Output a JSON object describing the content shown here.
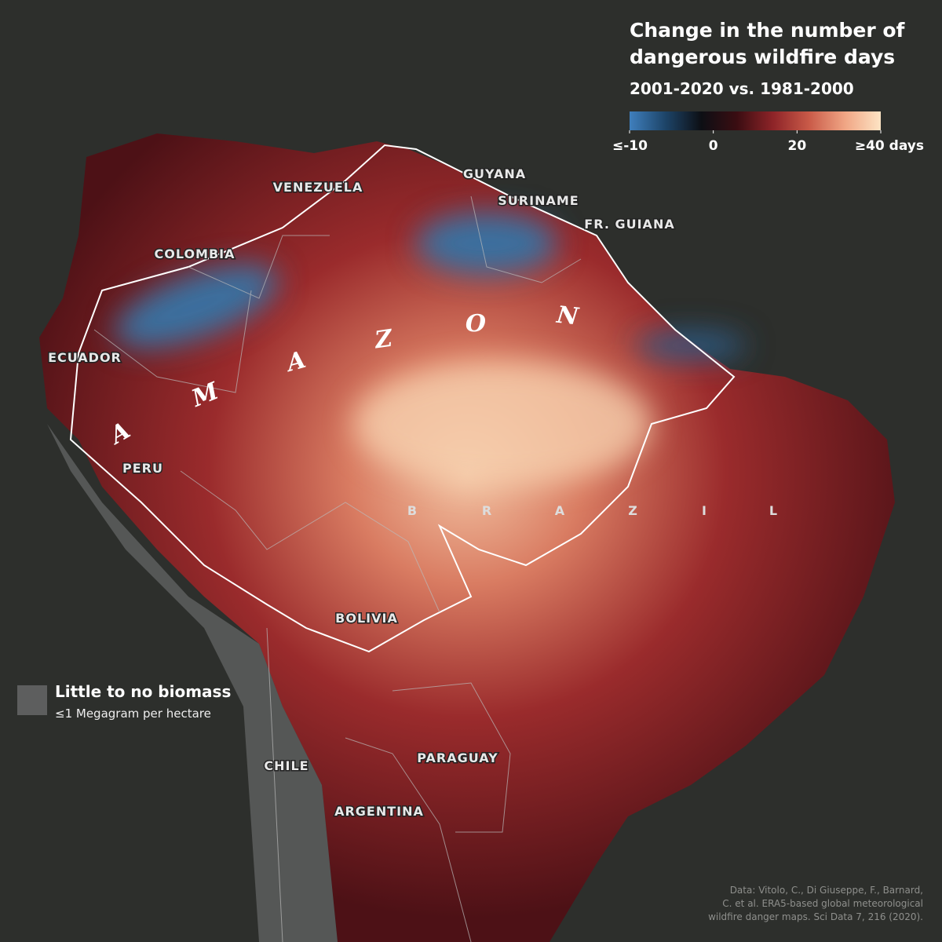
{
  "header": {
    "title": [
      "Change in the number of",
      "dangerous wildfire days"
    ],
    "subtitle": "2001-2020 vs. 1981-2000"
  },
  "colorbar": {
    "colors": [
      "#3f7fbd",
      "#1d4468",
      "#0d0f14",
      "#3b0d12",
      "#8e2428",
      "#c95a48",
      "#f0a584",
      "#fde4c4"
    ],
    "ticks": [
      {
        "value": -10,
        "label": "≤-10"
      },
      0,
      20,
      {
        "value": 40,
        "label": "≥40 days"
      }
    ]
  },
  "countries": [
    "VENEZUELA",
    "GUYANA",
    "SURINAME",
    "FR. GUIANA",
    "COLOMBIA",
    "ECUADOR",
    "PERU",
    "BOLIVIA",
    "CHILE",
    "PARAGUAY",
    "ARGENTINA"
  ],
  "region_label": [
    "A",
    "M",
    "A",
    "Z",
    "O",
    "N"
  ],
  "country_spread": [
    "B",
    "R",
    "A",
    "Z",
    "I",
    "L"
  ],
  "legend": {
    "label": "Little to no biomass",
    "sublabel": "≤1 Megagram per hectare",
    "color": "#5d5e5e"
  },
  "source": [
    "Data: Vitolo, C., Di Giuseppe, F., Barnard,",
    "C. et al. ERA5-based global meteorological",
    "wildfire danger maps. Sci Data 7, 216 (2020)."
  ]
}
